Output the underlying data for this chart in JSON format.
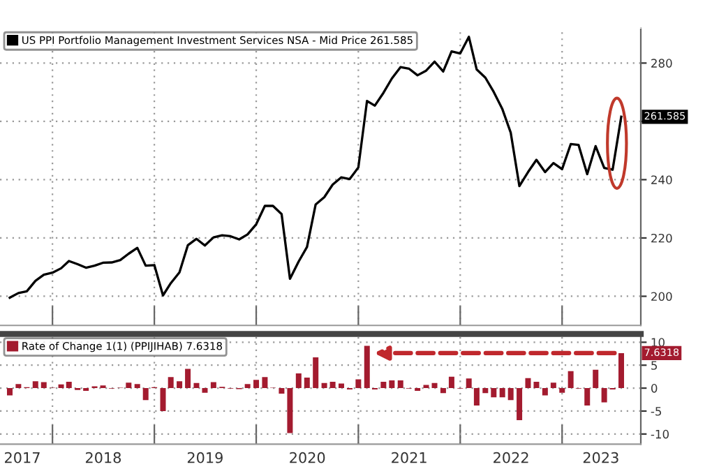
{
  "chart_data": [
    {
      "type": "line",
      "x": [
        "2017-08",
        "2017-09",
        "2017-10",
        "2017-11",
        "2017-12",
        "2018-01",
        "2018-02",
        "2018-03",
        "2018-04",
        "2018-05",
        "2018-06",
        "2018-07",
        "2018-08",
        "2018-09",
        "2018-10",
        "2018-11",
        "2018-12",
        "2019-01",
        "2019-02",
        "2019-03",
        "2019-04",
        "2019-05",
        "2019-06",
        "2019-07",
        "2019-08",
        "2019-09",
        "2019-10",
        "2019-11",
        "2019-12",
        "2020-01",
        "2020-02",
        "2020-03",
        "2020-04",
        "2020-05",
        "2020-06",
        "2020-07",
        "2020-08",
        "2020-09",
        "2020-10",
        "2020-11",
        "2020-12",
        "2021-01",
        "2021-02",
        "2021-03",
        "2021-04",
        "2021-05",
        "2021-06",
        "2021-07",
        "2021-08",
        "2021-09",
        "2021-10",
        "2021-11",
        "2021-12",
        "2022-01",
        "2022-02",
        "2022-03",
        "2022-04",
        "2022-05",
        "2022-06",
        "2022-07",
        "2022-08",
        "2022-09",
        "2022-10",
        "2022-11",
        "2022-12",
        "2023-01",
        "2023-02",
        "2023-03",
        "2023-04",
        "2023-05",
        "2023-06",
        "2023-07",
        "2023-08"
      ],
      "series": [
        {
          "name": "US PPI Portfolio Management Investment Services NSA - Mid Price 261.585",
          "color": "#000000",
          "values": [
            199.5,
            201.1,
            201.7,
            205.3,
            207.4,
            208.1,
            209.6,
            212.1,
            211.0,
            209.8,
            210.5,
            211.5,
            211.6,
            212.4,
            214.6,
            216.6,
            210.5,
            210.7,
            200.3,
            204.5,
            208.2,
            217.5,
            219.7,
            217.4,
            220.2,
            220.9,
            220.6,
            219.5,
            221.2,
            224.7,
            231.0,
            231.0,
            228.2,
            206.0,
            211.9,
            216.9,
            231.5,
            234.0,
            238.3,
            240.8,
            240.2,
            244.2,
            267.0,
            265.4,
            269.8,
            274.7,
            278.6,
            278.1,
            275.8,
            277.4,
            280.5,
            277.1,
            284.0,
            283.3,
            289.0,
            277.8,
            275.0,
            270.1,
            264.2,
            256.1,
            237.8,
            242.6,
            246.8,
            242.6,
            245.7,
            243.6,
            252.2,
            251.9,
            241.9,
            251.5,
            244.0,
            243.4,
            261.585
          ]
        }
      ],
      "xlim": [
        "2017-06-27",
        "2023-10-10"
      ],
      "xticks": [
        {
          "value": "2018-01-01",
          "label": null
        },
        {
          "value": "2019-01-01",
          "label": null
        },
        {
          "value": "2020-01-01",
          "label": null
        },
        {
          "value": "2021-01-01",
          "label": null
        },
        {
          "value": "2022-01-01",
          "label": null
        },
        {
          "value": "2023-01-01",
          "label": null
        }
      ],
      "ylim": [
        190,
        292
      ],
      "yticks": [
        200,
        220,
        240,
        {
          "value": 260,
          "label": null
        },
        280
      ],
      "annotations": [
        {
          "text": "261.585",
          "x": "2023-08",
          "y": 261.585
        }
      ],
      "grid": true,
      "legend": "top left",
      "tick_labels": "y",
      "line_style": "solid",
      "marker": "none"
    },
    {
      "type": "bar",
      "x": [
        "2017-08",
        "2017-09",
        "2017-10",
        "2017-11",
        "2017-12",
        "2018-01",
        "2018-02",
        "2018-03",
        "2018-04",
        "2018-05",
        "2018-06",
        "2018-07",
        "2018-08",
        "2018-09",
        "2018-10",
        "2018-11",
        "2018-12",
        "2019-01",
        "2019-02",
        "2019-03",
        "2019-04",
        "2019-05",
        "2019-06",
        "2019-07",
        "2019-08",
        "2019-09",
        "2019-10",
        "2019-11",
        "2019-12",
        "2020-01",
        "2020-02",
        "2020-03",
        "2020-04",
        "2020-05",
        "2020-06",
        "2020-07",
        "2020-08",
        "2020-09",
        "2020-10",
        "2020-11",
        "2020-12",
        "2021-01",
        "2021-02",
        "2021-03",
        "2021-04",
        "2021-05",
        "2021-06",
        "2021-07",
        "2021-08",
        "2021-09",
        "2021-10",
        "2021-11",
        "2021-12",
        "2022-01",
        "2022-02",
        "2022-03",
        "2022-04",
        "2022-05",
        "2022-06",
        "2022-07",
        "2022-08",
        "2022-09",
        "2022-10",
        "2022-11",
        "2022-12",
        "2023-01",
        "2023-02",
        "2023-03",
        "2023-04",
        "2023-05",
        "2023-06",
        "2023-07",
        "2023-08"
      ],
      "series": [
        {
          "name": "Rate of Change 1(1) (PPIJIHAB) 7.6318",
          "color": "#a31b2f",
          "values": [
            -1.6,
            0.9,
            0.2,
            1.5,
            1.3,
            0.1,
            0.8,
            1.4,
            -0.4,
            -0.6,
            0.4,
            0.6,
            -0.1,
            0.1,
            1.2,
            0.9,
            -2.6,
            0.2,
            -5.0,
            2.4,
            1.5,
            4.2,
            1.1,
            -1.0,
            1.3,
            0.3,
            -0.1,
            -0.2,
            0.9,
            1.8,
            2.4,
            0.1,
            -1.2,
            -9.8,
            3.2,
            2.3,
            6.7,
            1.1,
            1.4,
            1.0,
            -0.3,
            1.9,
            9.2,
            -0.3,
            1.4,
            1.7,
            1.7,
            -0.1,
            -0.6,
            0.7,
            1.1,
            -1.1,
            2.5,
            -0.1,
            2.1,
            -3.8,
            -1.1,
            -2.0,
            -2.0,
            -2.6,
            -7.0,
            2.2,
            1.4,
            -1.6,
            1.2,
            -1.0,
            3.7,
            -0.1,
            -3.8,
            4.0,
            -3.1,
            -0.3,
            7.6318
          ]
        }
      ],
      "xlim": [
        "2017-06-27",
        "2023-10-10"
      ],
      "xticks": [
        {
          "value": "2018-01-01",
          "label": null
        },
        {
          "value": "2019-01-01",
          "label": null
        },
        {
          "value": "2020-01-01",
          "label": null
        },
        {
          "value": "2021-01-01",
          "label": null
        },
        {
          "value": "2022-01-01",
          "label": null
        },
        {
          "value": "2023-01-01",
          "label": null
        },
        {
          "value": "2017-09-15",
          "label": "2017"
        },
        {
          "value": "2018-07-02",
          "label": "2018"
        },
        {
          "value": "2019-07-02",
          "label": "2019"
        },
        {
          "value": "2020-07-02",
          "label": "2020"
        },
        {
          "value": "2021-07-02",
          "label": "2021"
        },
        {
          "value": "2022-07-02",
          "label": "2022"
        },
        {
          "value": "2023-05-20",
          "label": "2023"
        }
      ],
      "ylim": [
        -12.2,
        11.8
      ],
      "yticks": [
        -10,
        -5,
        0,
        5,
        10
      ],
      "annotations": [
        {
          "text": "7.6318",
          "x": "2023-08",
          "y": 7.6318
        }
      ],
      "grid": true,
      "legend": "top left"
    }
  ]
}
